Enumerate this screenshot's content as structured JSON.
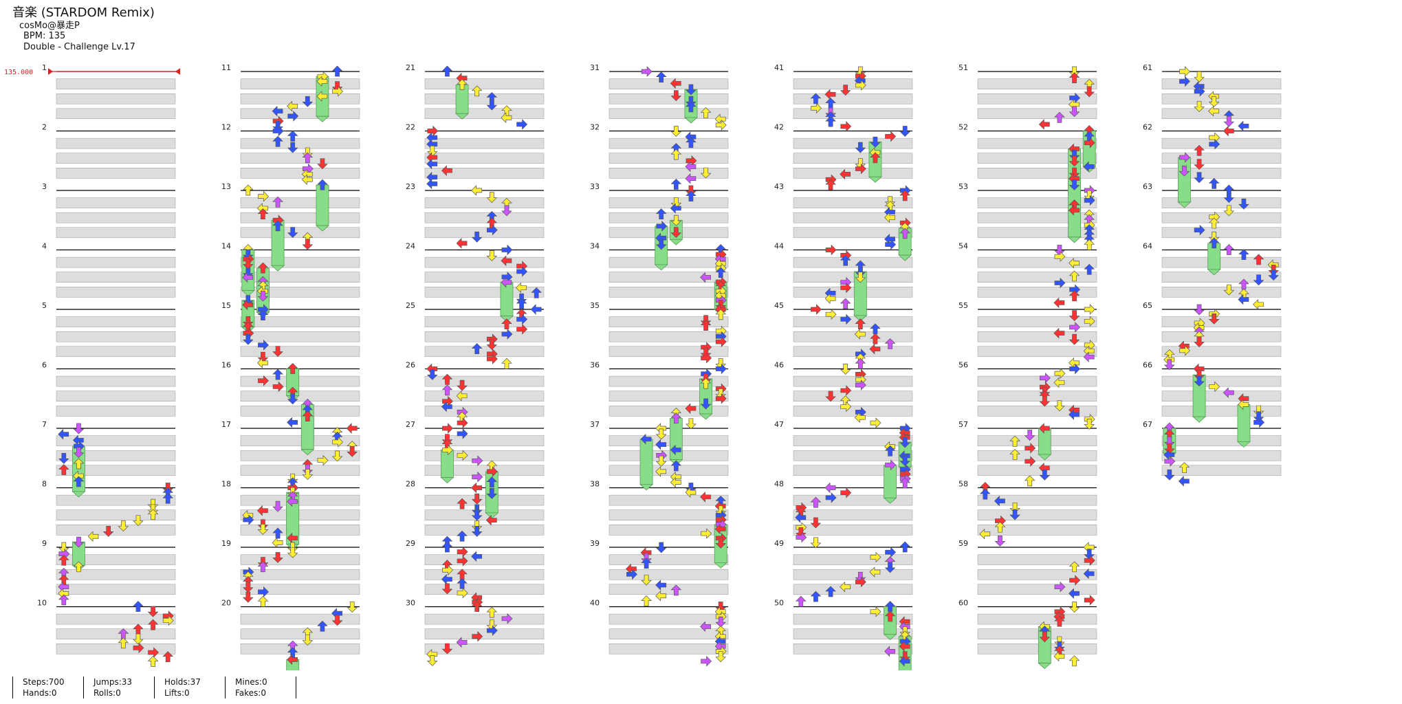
{
  "header": {
    "title": "音楽 (STARDOM Remix)",
    "artist": "cosMo@暴走P",
    "bpm": "BPM: 135",
    "difficulty": "Double - Challenge Lv.17"
  },
  "bpm_marker": "135.000",
  "measure_labels": [
    "1",
    "2",
    "3",
    "4",
    "5",
    "6",
    "7",
    "8",
    "9",
    "10",
    "11",
    "12",
    "13",
    "14",
    "15",
    "16",
    "17",
    "18",
    "19",
    "20",
    "21",
    "22",
    "23",
    "24",
    "25",
    "26",
    "27",
    "28",
    "29",
    "30",
    "31",
    "32",
    "33",
    "34",
    "35",
    "36",
    "37",
    "38",
    "39",
    "40",
    "41",
    "42",
    "43",
    "44",
    "45",
    "46",
    "47",
    "48",
    "49",
    "50",
    "51",
    "52",
    "53",
    "54",
    "55",
    "56",
    "57",
    "58",
    "59",
    "60",
    "61",
    "62",
    "63",
    "64",
    "65",
    "66",
    "67"
  ],
  "stats": [
    {
      "top": "Steps:700",
      "bottom": "Hands:0"
    },
    {
      "top": "Jumps:33",
      "bottom": "Rolls:0"
    },
    {
      "top": "Holds:37",
      "bottom": "Lifts:0"
    },
    {
      "top": "Mines:0",
      "bottom": "Fakes:0"
    }
  ],
  "colors": {
    "quarter": "#ff3333",
    "eighth": "#3355ff",
    "sixteenth": "#ffee33",
    "twelfth": "#cc55ff",
    "twentyfourth": "#ff55cc",
    "hold": "#88dd88",
    "lane_band": "#dddddd",
    "bpm_line": "#dd2222"
  }
}
